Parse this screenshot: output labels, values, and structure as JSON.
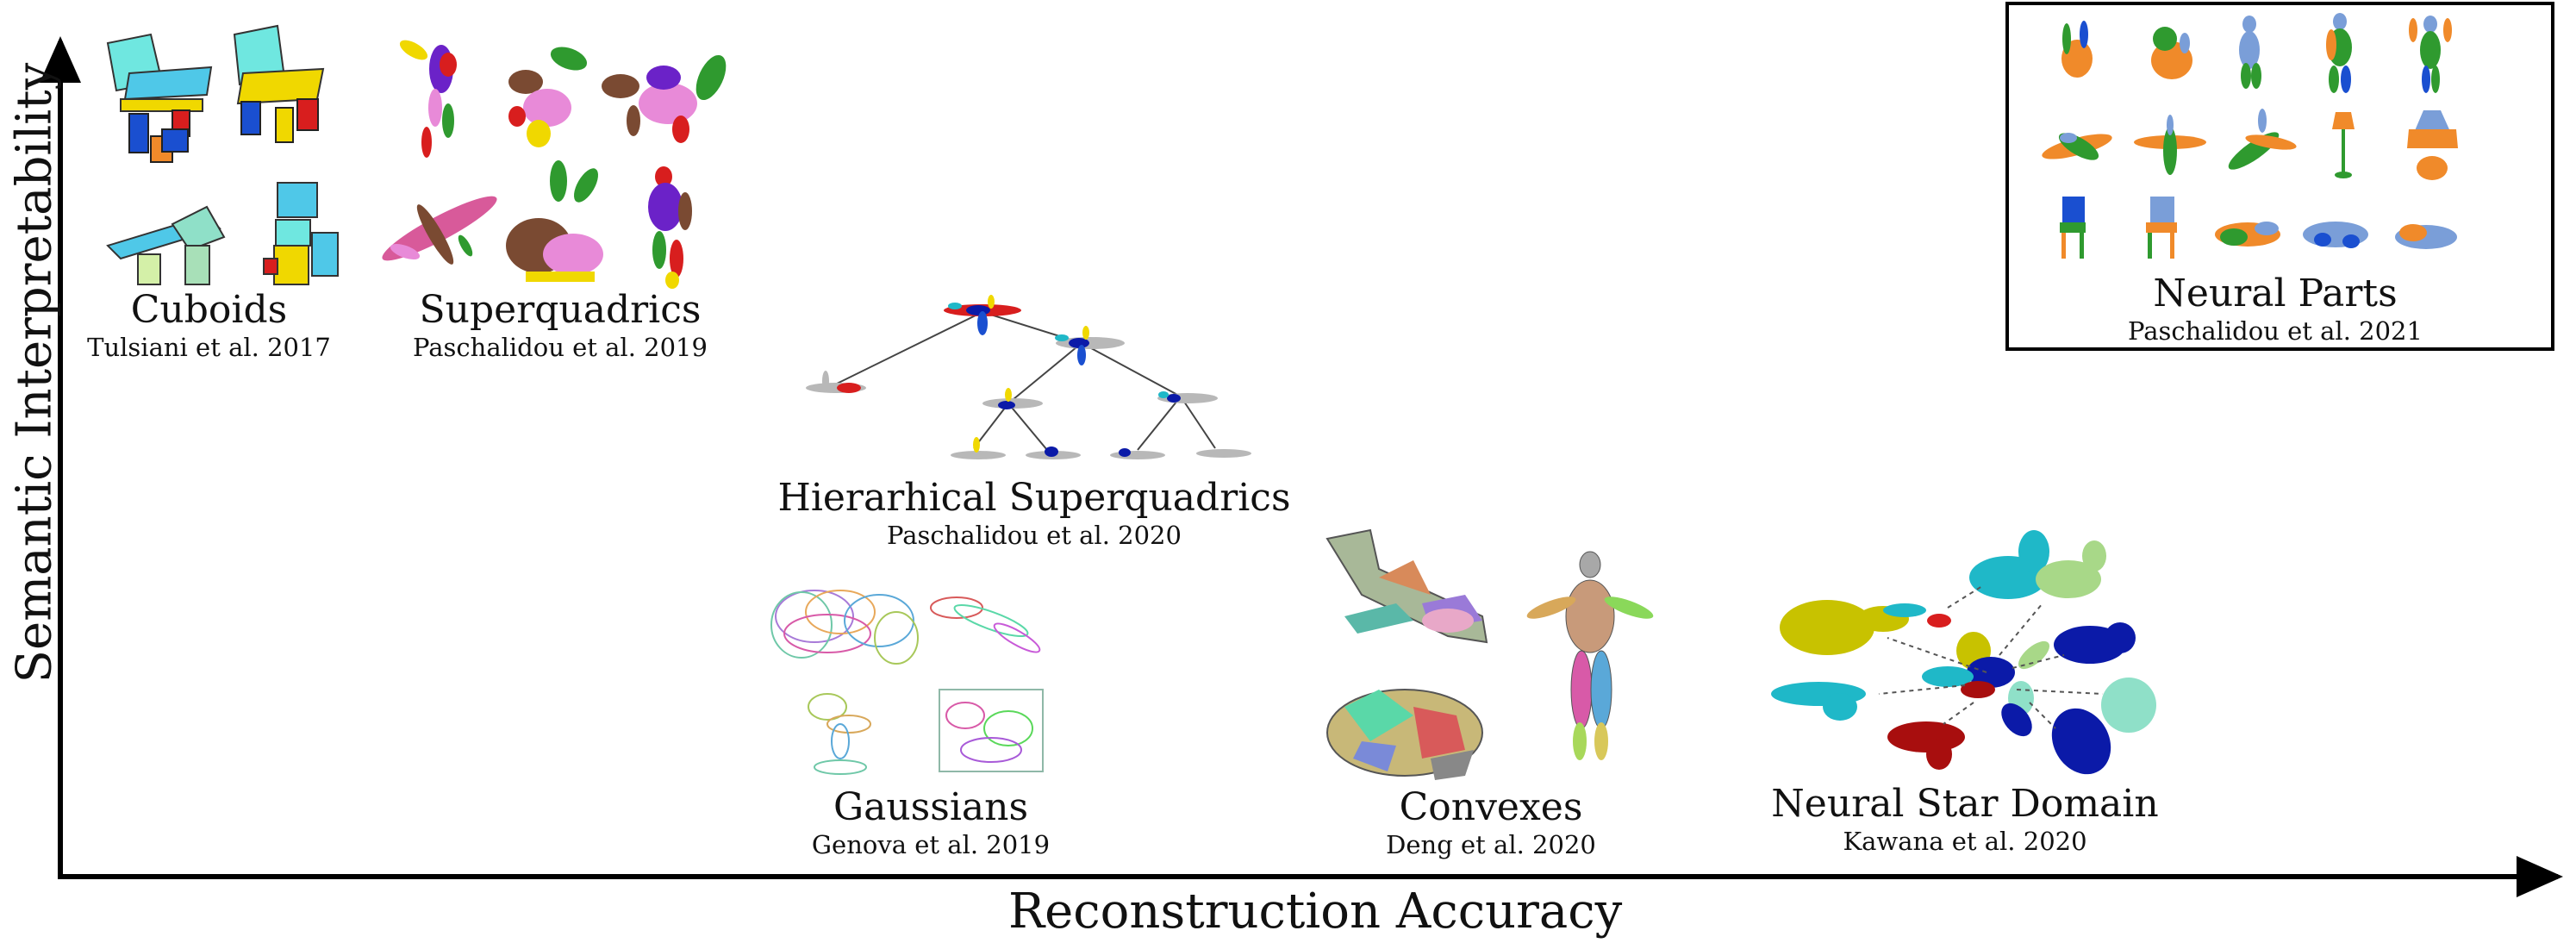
{
  "axes": {
    "x_label": "Reconstruction Accuracy",
    "y_label": "Semantic Interpretability"
  },
  "methods": [
    {
      "id": "cuboids",
      "name": "Cuboids",
      "citation": "Tulsiani et al. 2017"
    },
    {
      "id": "superquadrics",
      "name": "Superquadrics",
      "citation": "Paschalidou et al. 2019"
    },
    {
      "id": "hierarchical",
      "name": "Hierarhical Superquadrics",
      "citation": "Paschalidou et al. 2020"
    },
    {
      "id": "gaussians",
      "name": "Gaussians",
      "citation": "Genova et al. 2019"
    },
    {
      "id": "convexes",
      "name": "Convexes",
      "citation": "Deng et al. 2020"
    },
    {
      "id": "nsd",
      "name": "Neural Star Domain",
      "citation": "Kawana et al. 2020"
    },
    {
      "id": "neuralparts",
      "name": "Neural Parts",
      "citation": "Paschalidou et al. 2021"
    }
  ],
  "colors": {
    "axis": "#000000",
    "cyan": "#6fe7e0",
    "yellow": "#f0d800",
    "blue": "#1a4fd0",
    "red": "#d81e1e",
    "orange": "#f08a2a",
    "green": "#2f9a2f",
    "pink": "#e88ad8",
    "brown": "#7a4a32",
    "purple": "#6b22c8",
    "gray": "#b8b8b8",
    "navy": "#0b1aa8",
    "teal": "#1fb8c8",
    "mint": "#8fe0c8",
    "olive": "#c8c200",
    "lime": "#a8d888",
    "darkred": "#a80e0e",
    "lightblue": "#7a9ed8"
  }
}
